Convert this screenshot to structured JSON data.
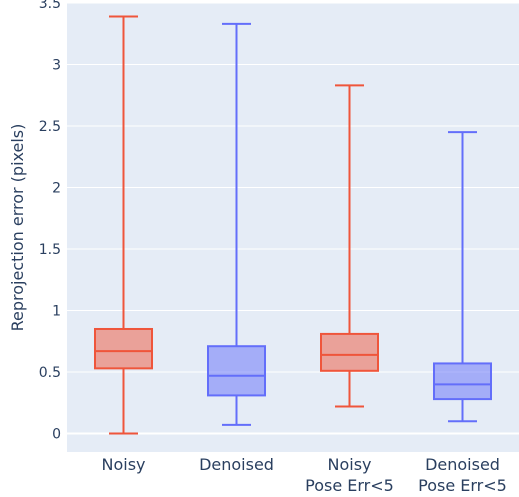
{
  "chart_data": {
    "type": "box",
    "ylabel": "Reprojection error (pixels)",
    "ylim": [
      -0.15,
      3.5
    ],
    "yticks": [
      {
        "value": 0,
        "label": "0"
      },
      {
        "value": 0.5,
        "label": "0.5"
      },
      {
        "value": 1,
        "label": "1"
      },
      {
        "value": 1.5,
        "label": "1.5"
      },
      {
        "value": 2,
        "label": "2"
      },
      {
        "value": 2.5,
        "label": "2.5"
      },
      {
        "value": 3,
        "label": "3"
      },
      {
        "value": 3.5,
        "label": "3.5"
      }
    ],
    "grid": true,
    "categories": [
      {
        "label_lines": [
          "Noisy"
        ],
        "color": "#ef553b",
        "fill": "rgba(239,85,59,0.5)",
        "min": 0.0,
        "q1": 0.53,
        "median": 0.67,
        "q3": 0.85,
        "max": 3.39
      },
      {
        "label_lines": [
          "Denoised"
        ],
        "color": "#636efa",
        "fill": "rgba(99,110,250,0.5)",
        "min": 0.07,
        "q1": 0.31,
        "median": 0.47,
        "q3": 0.71,
        "max": 3.33
      },
      {
        "label_lines": [
          "Noisy",
          "Pose Err<5"
        ],
        "color": "#ef553b",
        "fill": "rgba(239,85,59,0.5)",
        "min": 0.22,
        "q1": 0.51,
        "median": 0.64,
        "q3": 0.81,
        "max": 2.83
      },
      {
        "label_lines": [
          "Denoised",
          "Pose Err<5"
        ],
        "color": "#636efa",
        "fill": "rgba(99,110,250,0.5)",
        "min": 0.1,
        "q1": 0.28,
        "median": 0.4,
        "q3": 0.57,
        "max": 2.45
      }
    ],
    "colors": {
      "plot_bg": "#e5ecf6",
      "grid": "#ffffff",
      "text": "#2a3f5f"
    }
  }
}
